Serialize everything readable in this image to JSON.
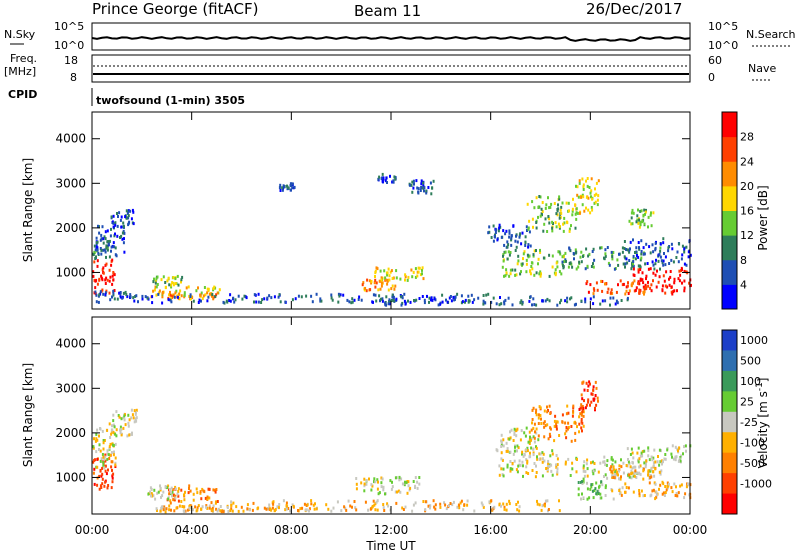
{
  "header": {
    "station": "Prince George (fitACF)",
    "beam": "Beam 11",
    "date": "26/Dec/2017"
  },
  "strip_labels": {
    "nsky": "N.Sky",
    "nsky_ticks": [
      "10^5",
      "10^0"
    ],
    "nsearch": "N.Search",
    "nsearch_ticks": [
      "10^5",
      "10^0"
    ],
    "freq": "Freq.",
    "freq_unit": "[MHz]",
    "freq_ticks": [
      "18",
      "8"
    ],
    "nave": "Nave",
    "nave_ticks": [
      "60",
      "0"
    ],
    "cpid": "CPID",
    "cpid_value": "twofsound (1-min) 3505"
  },
  "chart_data": [
    {
      "type": "heatmap",
      "name": "power",
      "ylabel": "Slant Range [km]",
      "ylim": [
        180,
        4600
      ],
      "yticks": [
        1000,
        2000,
        3000,
        4000
      ],
      "xlim": [
        0,
        24
      ],
      "colorbar": {
        "label": "Power [dB]",
        "ticks": [
          "4",
          "8",
          "12",
          "16",
          "20",
          "24",
          "28"
        ],
        "colors": [
          "#0000ff",
          "#1f4fb4",
          "#2e7d5a",
          "#66cc33",
          "#ffd700",
          "#ff8c00",
          "#ff4000",
          "#ff0000"
        ]
      }
    },
    {
      "type": "heatmap",
      "name": "velocity",
      "ylabel": "Slant Range [km]",
      "ylim": [
        180,
        4600
      ],
      "yticks": [
        1000,
        2000,
        3000,
        4000
      ],
      "xlim": [
        0,
        24
      ],
      "xlabel": "Time UT",
      "xticks": [
        "00:00",
        "04:00",
        "08:00",
        "12:00",
        "16:00",
        "20:00",
        "00:00"
      ],
      "colorbar": {
        "label": "Velocity [m s^-1]",
        "ticks": [
          "1000",
          "500",
          "100",
          "25",
          "-25",
          "-100",
          "-500",
          "-1000"
        ],
        "colors": [
          "#1c3fc8",
          "#2e6fb0",
          "#3a9a5a",
          "#66cc33",
          "#c8c8c0",
          "#ffb000",
          "#ff8000",
          "#ff4000",
          "#ff0000"
        ]
      }
    }
  ],
  "blobs": {
    "power": [
      [
        0.2,
        900,
        0.7,
        400,
        7
      ],
      [
        0.1,
        1550,
        0.6,
        250,
        2
      ],
      [
        0.7,
        1700,
        0.6,
        350,
        1
      ],
      [
        1.2,
        2200,
        0.5,
        200,
        1
      ],
      [
        0.6,
        500,
        1.2,
        80,
        1
      ],
      [
        3.7,
        550,
        1.4,
        120,
        4
      ],
      [
        3.0,
        800,
        0.6,
        100,
        3
      ],
      [
        4.0,
        450,
        1.0,
        60,
        5
      ],
      [
        11.5,
        700,
        0.7,
        120,
        5
      ],
      [
        12.3,
        950,
        1.0,
        150,
        4
      ],
      [
        11.8,
        3100,
        0.4,
        100,
        1
      ],
      [
        13.2,
        2900,
        0.5,
        150,
        1
      ],
      [
        7.8,
        2900,
        0.3,
        80,
        1
      ],
      [
        8.0,
        400,
        8.0,
        100,
        1
      ],
      [
        16.7,
        1800,
        0.9,
        250,
        1
      ],
      [
        17.7,
        1200,
        1.3,
        300,
        3
      ],
      [
        18.4,
        2300,
        1.0,
        400,
        3
      ],
      [
        19.8,
        2700,
        0.5,
        400,
        4
      ],
      [
        20.8,
        1300,
        2.0,
        250,
        2
      ],
      [
        22.8,
        1450,
        1.5,
        300,
        1
      ],
      [
        23.0,
        800,
        1.4,
        300,
        7
      ],
      [
        21.0,
        650,
        1.2,
        150,
        6
      ],
      [
        16.5,
        350,
        5.0,
        100,
        1
      ],
      [
        22.0,
        2200,
        0.5,
        200,
        3
      ]
    ],
    "velocity": [
      [
        0.3,
        1100,
        0.6,
        400,
        7
      ],
      [
        0.5,
        1700,
        0.5,
        500,
        4
      ],
      [
        1.3,
        2200,
        0.5,
        300,
        4
      ],
      [
        4.0,
        600,
        1.1,
        200,
        6
      ],
      [
        2.8,
        650,
        0.6,
        150,
        4
      ],
      [
        11.8,
        800,
        1.3,
        200,
        4
      ],
      [
        12.0,
        350,
        7.0,
        120,
        5
      ],
      [
        17.0,
        1800,
        0.9,
        300,
        4
      ],
      [
        18.6,
        2200,
        1.1,
        400,
        6
      ],
      [
        19.9,
        2800,
        0.4,
        350,
        7
      ],
      [
        17.5,
        1300,
        1.2,
        300,
        4
      ],
      [
        20.9,
        1200,
        2.0,
        250,
        4
      ],
      [
        20.0,
        700,
        0.6,
        200,
        3
      ],
      [
        22.5,
        700,
        1.7,
        200,
        5
      ],
      [
        22.8,
        1500,
        1.5,
        200,
        4
      ],
      [
        21.7,
        1100,
        1.0,
        150,
        5
      ],
      [
        6.0,
        300,
        3.0,
        80,
        5
      ],
      [
        4.0,
        280,
        1.5,
        70,
        5
      ]
    ]
  }
}
